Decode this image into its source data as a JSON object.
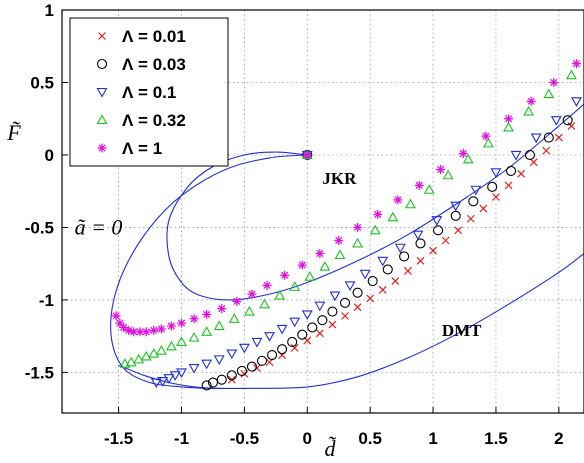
{
  "chart_data": {
    "type": "scatter",
    "xlabel": "d̃",
    "ylabel": "F̃",
    "xlim": [
      -1.95,
      2.2
    ],
    "ylim": [
      -1.78,
      1.0
    ],
    "xticks": [
      "-1.5",
      "-1",
      "-0.5",
      "0",
      "0.5",
      "1",
      "1.5",
      "2"
    ],
    "xtick_values": [
      -1.5,
      -1,
      -0.5,
      0,
      0.5,
      1,
      1.5,
      2
    ],
    "yticks": [
      "1",
      "0.5",
      "0",
      "-0.5",
      "-1",
      "-1.5"
    ],
    "ytick_values": [
      1,
      0.5,
      0,
      -0.5,
      -1,
      -1.5
    ],
    "grid": true,
    "legend_position": "top-left",
    "series": [
      {
        "name": "Λ = 0.01",
        "marker": "x",
        "color": "#e0201e",
        "x": [
          -0.6,
          -0.5,
          -0.4,
          -0.3,
          -0.2,
          -0.1,
          0.0,
          0.1,
          0.2,
          0.3,
          0.4,
          0.5,
          0.6,
          0.7,
          0.8,
          0.9,
          1.0,
          1.1,
          1.2,
          1.3,
          1.4,
          1.5,
          1.6,
          1.7,
          1.8,
          1.9,
          2.0,
          2.1
        ],
        "y": [
          -1.55,
          -1.51,
          -1.47,
          -1.43,
          -1.38,
          -1.33,
          -1.28,
          -1.23,
          -1.17,
          -1.11,
          -1.05,
          -0.99,
          -0.93,
          -0.87,
          -0.8,
          -0.73,
          -0.66,
          -0.59,
          -0.52,
          -0.44,
          -0.37,
          -0.29,
          -0.21,
          -0.13,
          -0.05,
          0.03,
          0.12,
          0.2
        ]
      },
      {
        "name": "Λ = 0.03",
        "marker": "o",
        "color": "#000000",
        "x": [
          0.0,
          -0.8,
          -0.75,
          -0.68,
          -0.6,
          -0.52,
          -0.44,
          -0.36,
          -0.28,
          -0.2,
          -0.12,
          -0.04,
          0.04,
          0.12,
          0.2,
          0.3,
          0.4,
          0.52,
          0.64,
          0.77,
          0.9,
          1.04,
          1.18,
          1.32,
          1.47,
          1.62,
          1.77,
          1.92,
          2.07
        ],
        "y": [
          0.0,
          -1.59,
          -1.57,
          -1.55,
          -1.52,
          -1.49,
          -1.46,
          -1.42,
          -1.38,
          -1.34,
          -1.29,
          -1.24,
          -1.19,
          -1.14,
          -1.08,
          -1.02,
          -0.95,
          -0.87,
          -0.79,
          -0.7,
          -0.61,
          -0.52,
          -0.42,
          -0.32,
          -0.22,
          -0.11,
          0.0,
          0.12,
          0.24
        ]
      },
      {
        "name": "Λ = 0.1",
        "marker": "triangle-down",
        "color": "#1f2fd6",
        "x": [
          0.0,
          -1.2,
          -1.15,
          -1.1,
          -1.05,
          -1.0,
          -0.9,
          -0.8,
          -0.7,
          -0.6,
          -0.5,
          -0.4,
          -0.3,
          -0.2,
          -0.1,
          0.0,
          0.1,
          0.22,
          0.34,
          0.46,
          0.6,
          0.74,
          0.88,
          1.03,
          1.18,
          1.34,
          1.5,
          1.66,
          1.82,
          1.98,
          2.14
        ],
        "y": [
          0.0,
          -1.57,
          -1.56,
          -1.54,
          -1.52,
          -1.5,
          -1.47,
          -1.44,
          -1.41,
          -1.37,
          -1.33,
          -1.29,
          -1.25,
          -1.2,
          -1.15,
          -1.1,
          -1.04,
          -0.97,
          -0.9,
          -0.82,
          -0.73,
          -0.64,
          -0.55,
          -0.45,
          -0.35,
          -0.24,
          -0.12,
          0.0,
          0.12,
          0.24,
          0.37
        ]
      },
      {
        "name": "Λ = 0.32",
        "marker": "triangle-up",
        "color": "#19c41d",
        "x": [
          0.0,
          -1.45,
          -1.4,
          -1.34,
          -1.28,
          -1.22,
          -1.16,
          -1.08,
          -1.0,
          -0.9,
          -0.8,
          -0.7,
          -0.58,
          -0.46,
          -0.34,
          -0.22,
          -0.1,
          0.02,
          0.14,
          0.26,
          0.4,
          0.54,
          0.68,
          0.82,
          0.97,
          1.12,
          1.28,
          1.44,
          1.6,
          1.76,
          1.92,
          2.1
        ],
        "y": [
          0.0,
          -1.44,
          -1.43,
          -1.41,
          -1.39,
          -1.37,
          -1.35,
          -1.32,
          -1.29,
          -1.26,
          -1.22,
          -1.18,
          -1.13,
          -1.08,
          -1.03,
          -0.97,
          -0.91,
          -0.84,
          -0.77,
          -0.69,
          -0.61,
          -0.52,
          -0.43,
          -0.34,
          -0.24,
          -0.14,
          -0.03,
          0.08,
          0.19,
          0.3,
          0.42,
          0.55
        ]
      },
      {
        "name": "Λ = 1",
        "marker": "star",
        "color": "#e011e0",
        "x": [
          0.0,
          -1.52,
          -1.49,
          -1.46,
          -1.42,
          -1.38,
          -1.33,
          -1.28,
          -1.22,
          -1.16,
          -1.08,
          -1.0,
          -0.9,
          -0.8,
          -0.68,
          -0.56,
          -0.44,
          -0.32,
          -0.18,
          -0.04,
          0.1,
          0.25,
          0.4,
          0.56,
          0.72,
          0.89,
          1.06,
          1.24,
          1.42,
          1.6,
          1.78,
          1.96,
          2.14
        ],
        "y": [
          0.0,
          -1.11,
          -1.16,
          -1.19,
          -1.21,
          -1.22,
          -1.22,
          -1.22,
          -1.21,
          -1.2,
          -1.18,
          -1.16,
          -1.13,
          -1.1,
          -1.06,
          -1.01,
          -0.96,
          -0.9,
          -0.83,
          -0.76,
          -0.68,
          -0.59,
          -0.5,
          -0.41,
          -0.31,
          -0.21,
          -0.1,
          0.01,
          0.13,
          0.25,
          0.37,
          0.5,
          0.63
        ]
      }
    ],
    "curves": [
      {
        "name": "JKR",
        "x": [
          0.0,
          -0.25,
          -0.5,
          -0.75,
          -0.95,
          -1.1,
          -1.1,
          -1.0,
          -0.85,
          -0.6,
          -0.3,
          0.0,
          0.4,
          0.8,
          1.2,
          1.6,
          2.0,
          2.2
        ],
        "y": [
          0.0,
          0.02,
          0.0,
          -0.08,
          -0.22,
          -0.45,
          -0.7,
          -0.88,
          -0.97,
          -1.0,
          -0.96,
          -0.88,
          -0.73,
          -0.55,
          -0.33,
          -0.09,
          0.2,
          0.35
        ]
      },
      {
        "name": "ã = 0",
        "x": [
          0.0,
          -0.3,
          -0.65,
          -1.0,
          -1.25,
          -1.45,
          -1.55,
          -1.55,
          -1.45,
          -1.25,
          -1.0,
          -0.75,
          -0.5
        ],
        "y": [
          0.0,
          -0.02,
          -0.1,
          -0.28,
          -0.5,
          -0.78,
          -1.05,
          -1.3,
          -1.48,
          -1.57,
          -1.6,
          -1.61,
          -1.61
        ]
      },
      {
        "name": "DMT",
        "x": [
          -1.5,
          -1.3,
          -1.1,
          -0.9,
          -0.7,
          -0.5,
          0.0,
          0.4,
          0.8,
          1.2,
          1.6,
          2.0,
          2.2
        ],
        "y": [
          -1.45,
          -1.52,
          -1.57,
          -1.6,
          -1.61,
          -1.61,
          -1.6,
          -1.53,
          -1.4,
          -1.23,
          -1.03,
          -0.81,
          -0.68
        ]
      }
    ],
    "annotations": [
      {
        "text": "JKR",
        "x": 0.12,
        "y": -0.2
      },
      {
        "text": "DMT",
        "x": 1.07,
        "y": -1.25
      },
      {
        "text": "ã = 0",
        "x": -1.85,
        "y": -0.55
      }
    ]
  }
}
